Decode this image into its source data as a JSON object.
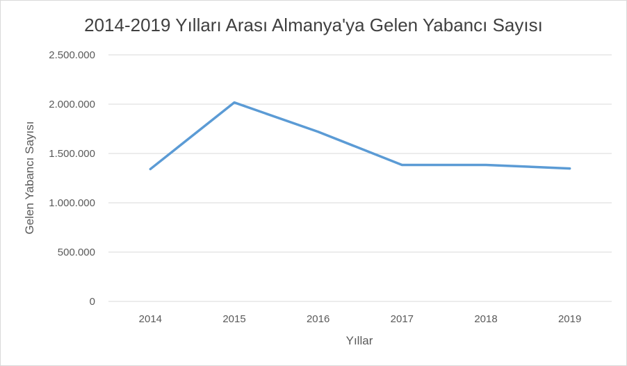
{
  "chart_data": {
    "type": "line",
    "title": "2014-2019 Yılları Arası Almanya'ya Gelen Yabancı Sayısı",
    "xlabel": "Yıllar",
    "ylabel": "Gelen Yabancı Sayısı",
    "categories": [
      "2014",
      "2015",
      "2016",
      "2017",
      "2018",
      "2019"
    ],
    "series": [
      {
        "values": [
          1342000,
          2017000,
          1720000,
          1384000,
          1384000,
          1348000
        ],
        "color": "#5b9bd5"
      }
    ],
    "ylim": [
      0,
      2500000
    ],
    "yticks": [
      0,
      500000,
      1000000,
      1500000,
      2000000,
      2500000
    ],
    "ytick_labels": [
      "0",
      "500.000",
      "1.000.000",
      "1.500.000",
      "2.000.000",
      "2.500.000"
    ],
    "grid": true,
    "gridline_color": "#d9d9d9",
    "legend": "none"
  }
}
